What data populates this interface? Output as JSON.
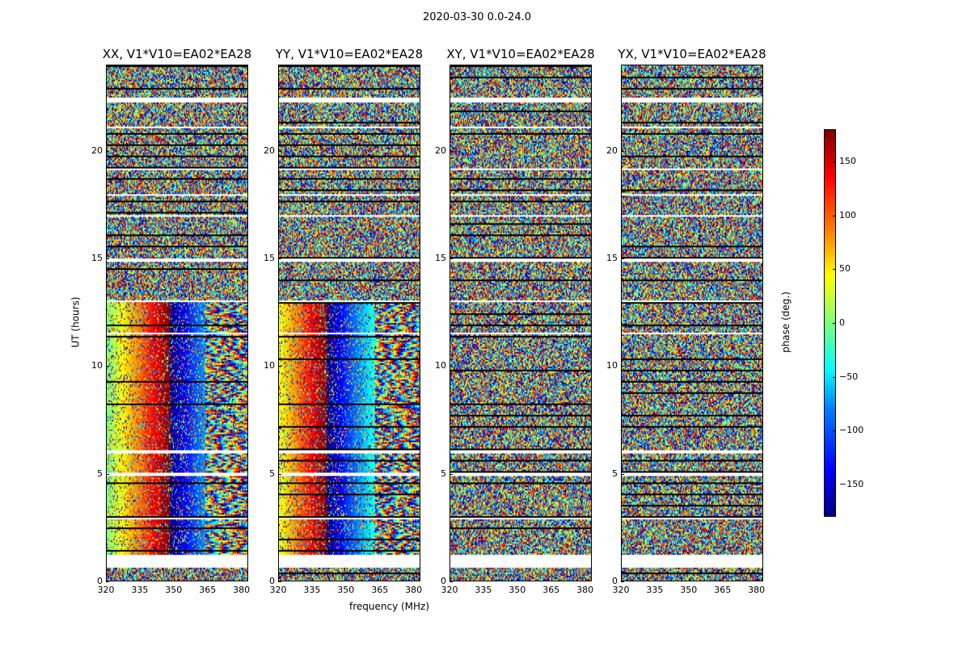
{
  "chart_data": {
    "type": "heatmap",
    "suptitle": "2020-03-30 0.0-24.0",
    "xlabel": "frequency (MHz)",
    "ylabel": "UT (hours)",
    "colorbar_label": "phase (deg.)",
    "colormap": "jet",
    "clim": [
      -180,
      180
    ],
    "colorbar_ticks": [
      -150,
      -100,
      -50,
      0,
      50,
      100,
      150
    ],
    "colorbar_tick_labels": [
      "−150",
      "−100",
      "−50",
      "0",
      "50",
      "100",
      "150"
    ],
    "xlim": [
      320,
      383
    ],
    "ylim": [
      0,
      24
    ],
    "xticks": [
      320,
      335,
      350,
      365,
      380
    ],
    "yticks": [
      0,
      5,
      10,
      15,
      20
    ],
    "panels": [
      {
        "title": "XX, V1*V10=EA02*EA28",
        "pattern": "coherent-xx"
      },
      {
        "title": "YY, V1*V10=EA02*EA28",
        "pattern": "coherent-yy"
      },
      {
        "title": "XY, V1*V10=EA02*EA28",
        "pattern": "noisy"
      },
      {
        "title": "YX, V1*V10=EA02*EA28",
        "pattern": "noisy"
      }
    ],
    "flagged_gaps_hours": [
      [
        0.6,
        1.2
      ],
      [
        2.85,
        2.95
      ],
      [
        4.9,
        5.0
      ],
      [
        5.95,
        6.05
      ],
      [
        11.45,
        11.55
      ],
      [
        12.95,
        13.05
      ],
      [
        14.85,
        15.0
      ],
      [
        16.95,
        17.05
      ],
      [
        17.9,
        18.0
      ],
      [
        19.1,
        19.2
      ],
      [
        21.05,
        21.15
      ],
      [
        22.3,
        22.5
      ]
    ]
  }
}
